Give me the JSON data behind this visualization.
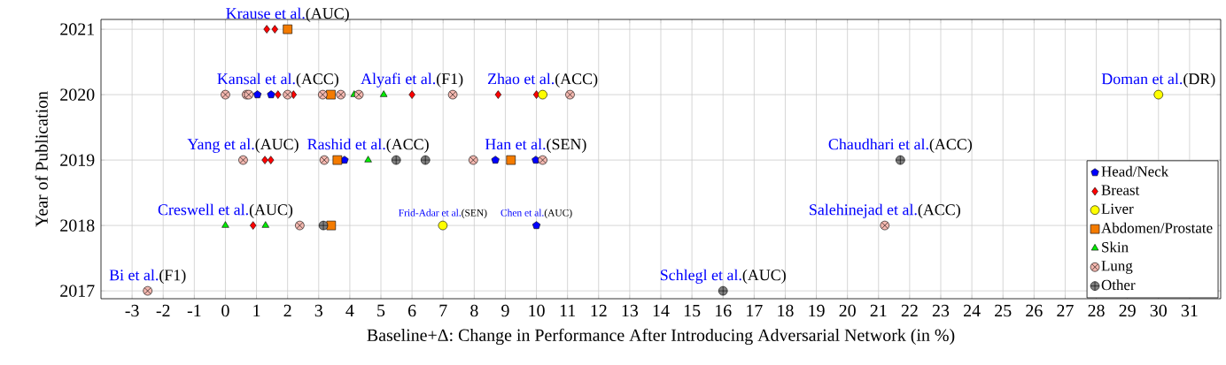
{
  "chart_data": {
    "type": "scatter",
    "xlabel": "Baseline+Δ: Change in Performance After Introducing Adversarial Network (in %)",
    "ylabel": "Year of Publication",
    "xlim": [
      -4,
      32
    ],
    "ylim": [
      2016.88,
      2021.15
    ],
    "xticks": [
      -3,
      -2,
      -1,
      0,
      1,
      2,
      3,
      4,
      5,
      6,
      7,
      8,
      9,
      10,
      11,
      12,
      13,
      14,
      15,
      16,
      17,
      18,
      19,
      20,
      21,
      22,
      23,
      24,
      25,
      26,
      27,
      28,
      29,
      30,
      31
    ],
    "yticks": [
      2017,
      2018,
      2019,
      2020,
      2021
    ],
    "grid": true,
    "legend": "bottom right",
    "series": [
      {
        "name": "Head/Neck",
        "color": "#0000ff",
        "x": [
          1.03,
          1.47,
          3.83,
          8.68,
          9.98,
          10.0
        ],
        "values": [
          2020,
          2020,
          2019,
          2019,
          2019,
          2018
        ]
      },
      {
        "name": "Breast",
        "color": "#ff0000",
        "marker": "diamond",
        "x": [
          1.33,
          1.59,
          1.69,
          2.19,
          6.0,
          8.77,
          10.0,
          1.27,
          1.46,
          0.89
        ],
        "values": [
          2021,
          2021,
          2020,
          2020,
          2020,
          2020,
          2020,
          2019,
          2019,
          2018
        ]
      },
      {
        "name": "Liver",
        "color": "#ffff00",
        "marker": "circle",
        "x": [
          10.2,
          30.0,
          6.99
        ],
        "values": [
          2020,
          2020,
          2018
        ]
      },
      {
        "name": "Abdomen/Prostate",
        "color": "#f47b00",
        "marker": "square",
        "x": [
          2.0,
          3.39,
          3.6,
          9.18,
          3.4
        ],
        "values": [
          2021,
          2020,
          2019,
          2019,
          2018
        ]
      },
      {
        "name": "Skin",
        "color": "#00ee00",
        "marker": "triangle",
        "x": [
          4.14,
          5.09,
          4.59,
          0.0,
          1.29
        ],
        "values": [
          2020,
          2020,
          2019,
          2018,
          2018
        ]
      },
      {
        "name": "Lung",
        "color": "#f4b8b0",
        "marker": "cross",
        "x": [
          0.0,
          0.68,
          0.75,
          2.0,
          3.13,
          3.71,
          4.29,
          7.31,
          11.08,
          0.57,
          3.18,
          7.97,
          10.2,
          2.39,
          21.2,
          -2.5
        ],
        "values": [
          2020,
          2020,
          2020,
          2020,
          2020,
          2020,
          2020,
          2020,
          2020,
          2019,
          2019,
          2019,
          2019,
          2018,
          2018,
          2017
        ]
      },
      {
        "name": "Other",
        "color": "#808080",
        "marker": "cross",
        "x": [
          5.49,
          6.43,
          21.7,
          3.15,
          16.0
        ],
        "values": [
          2019,
          2019,
          2019,
          2018,
          2017
        ]
      }
    ],
    "annotations": [
      {
        "text": "Krause et al.",
        "x": 2.0,
        "y": 2021
      },
      {
        "text": "(AUC)",
        "x": 2.0,
        "y": 2021
      },
      {
        "text": "Kansal et al.",
        "x": 1.69,
        "y": 2020
      },
      {
        "text": "(ACC)",
        "x": 1.69,
        "y": 2020
      },
      {
        "text": "Alyafi et al.",
        "x": 6.0,
        "y": 2020
      },
      {
        "text": "(F1)",
        "x": 6.0,
        "y": 2020
      },
      {
        "text": "Zhao et al.",
        "x": 10.2,
        "y": 2020
      },
      {
        "text": "(ACC)",
        "x": 10.2,
        "y": 2020
      },
      {
        "text": "Doman et al.",
        "x": 30.0,
        "y": 2020
      },
      {
        "text": "(DR)",
        "x": 30.0,
        "y": 2020
      },
      {
        "text": "Yang et al.",
        "x": 0.57,
        "y": 2019
      },
      {
        "text": "(AUC)",
        "x": 0.57,
        "y": 2019
      },
      {
        "text": "Rashid et al.",
        "x": 4.59,
        "y": 2019
      },
      {
        "text": "(ACC)",
        "x": 4.59,
        "y": 2019
      },
      {
        "text": "Han et al.",
        "x": 9.98,
        "y": 2019
      },
      {
        "text": "(SEN)",
        "x": 9.98,
        "y": 2019
      },
      {
        "text": "Chaudhari et al.",
        "x": 21.7,
        "y": 2019
      },
      {
        "text": "(ACC)",
        "x": 21.7,
        "y": 2019
      },
      {
        "text": "Creswell et al.",
        "x": 0.0,
        "y": 2018
      },
      {
        "text": "(AUC)",
        "x": 0.0,
        "y": 2018
      },
      {
        "text": "Frid-Adar et al.",
        "x": 6.99,
        "y": 2018
      },
      {
        "text": "(SEN)",
        "x": 6.99,
        "y": 2018
      },
      {
        "text": "Chen et al.",
        "x": 10.0,
        "y": 2018
      },
      {
        "text": "(AUC)",
        "x": 10.0,
        "y": 2018
      },
      {
        "text": "Salehinejad et al.",
        "x": 21.2,
        "y": 2018
      },
      {
        "text": "(ACC)",
        "x": 21.2,
        "y": 2018
      },
      {
        "text": "Schlegl et al.",
        "x": 16.0,
        "y": 2017
      },
      {
        "text": "(AUC)",
        "x": 16.0,
        "y": 2017
      },
      {
        "text": "Bi et al.",
        "x": -2.5,
        "y": 2017
      },
      {
        "text": "(F1)",
        "x": -2.5,
        "y": 2017
      }
    ]
  }
}
